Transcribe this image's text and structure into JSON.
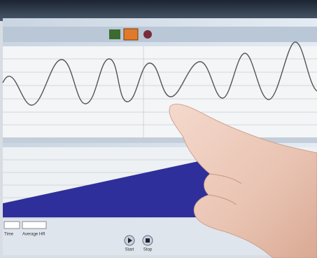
{
  "controls": {
    "start": "Start",
    "stop": "Stop"
  },
  "readouts": {
    "time": "Time",
    "average_hr": "Average HR"
  }
}
